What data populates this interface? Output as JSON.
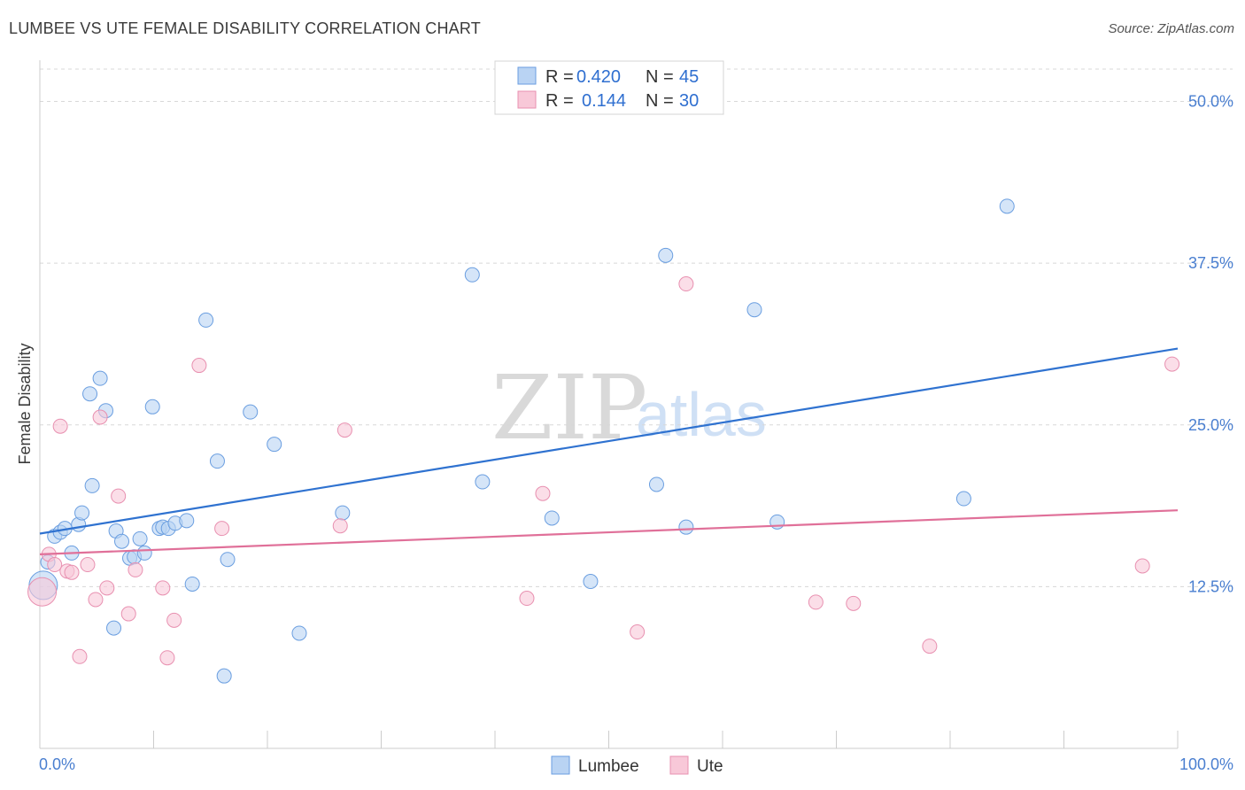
{
  "header": {
    "title": "LUMBEE VS UTE FEMALE DISABILITY CORRELATION CHART",
    "source": "Source: ZipAtlas.com"
  },
  "watermark": {
    "zip": "ZIP",
    "atlas": "atlas"
  },
  "colors": {
    "lumbee_fill": "#b9d3f3",
    "lumbee_stroke": "#6a9ee0",
    "lumbee_line": "#2f72d0",
    "ute_fill": "#f8c8d8",
    "ute_stroke": "#e890b0",
    "ute_line": "#e07099",
    "grid": "#d8d8d8",
    "tick_label": "#4a7fd0"
  },
  "stats": [
    {
      "r_label": "R = ",
      "r_value": "0.420",
      "n_label": "N = ",
      "n_value": "45"
    },
    {
      "r_label": "R = ",
      "r_value": "0.144",
      "n_label": "N = ",
      "n_value": "30"
    }
  ],
  "chart_data": {
    "type": "scatter",
    "title": "LUMBEE VS UTE FEMALE DISABILITY CORRELATION CHART",
    "xlabel": "",
    "ylabel": "Female Disability",
    "xlim": [
      0,
      100
    ],
    "ylim": [
      0,
      52.5
    ],
    "x_tick_labels": [
      "0.0%",
      "100.0%"
    ],
    "y_ticks": [
      12.5,
      25.0,
      37.5,
      50.0
    ],
    "y_tick_labels": [
      "12.5%",
      "25.0%",
      "37.5%",
      "50.0%"
    ],
    "grid": "horizontal dashed",
    "legend_position": "bottom-center",
    "series": [
      {
        "name": "Lumbee",
        "points": [
          [
            0.3,
            12.6
          ],
          [
            0.7,
            14.4
          ],
          [
            1.3,
            16.4
          ],
          [
            1.8,
            16.7
          ],
          [
            2.2,
            17.0
          ],
          [
            2.8,
            15.1
          ],
          [
            3.4,
            17.3
          ],
          [
            3.7,
            18.2
          ],
          [
            4.4,
            27.4
          ],
          [
            4.6,
            20.3
          ],
          [
            5.3,
            28.6
          ],
          [
            5.8,
            26.1
          ],
          [
            6.5,
            9.3
          ],
          [
            6.7,
            16.8
          ],
          [
            7.2,
            16.0
          ],
          [
            7.9,
            14.7
          ],
          [
            8.3,
            14.8
          ],
          [
            8.8,
            16.2
          ],
          [
            9.2,
            15.1
          ],
          [
            9.9,
            26.4
          ],
          [
            10.5,
            17.0
          ],
          [
            10.8,
            17.1
          ],
          [
            11.3,
            17.0
          ],
          [
            11.9,
            17.4
          ],
          [
            12.9,
            17.6
          ],
          [
            13.4,
            12.7
          ],
          [
            14.6,
            33.1
          ],
          [
            15.6,
            22.2
          ],
          [
            16.2,
            5.6
          ],
          [
            16.5,
            14.6
          ],
          [
            18.5,
            26.0
          ],
          [
            20.6,
            23.5
          ],
          [
            22.8,
            8.9
          ],
          [
            26.6,
            18.2
          ],
          [
            38.0,
            36.6
          ],
          [
            38.9,
            20.6
          ],
          [
            45.0,
            17.8
          ],
          [
            48.4,
            12.9
          ],
          [
            54.2,
            20.4
          ],
          [
            55.0,
            38.1
          ],
          [
            56.8,
            17.1
          ],
          [
            62.8,
            33.9
          ],
          [
            64.8,
            17.5
          ],
          [
            81.2,
            19.3
          ],
          [
            85.0,
            41.9
          ]
        ],
        "trend": {
          "x": [
            0,
            100
          ],
          "y": [
            16.6,
            30.9
          ]
        }
      },
      {
        "name": "Ute",
        "points": [
          [
            0.2,
            12.1
          ],
          [
            0.8,
            15.0
          ],
          [
            1.3,
            14.2
          ],
          [
            1.8,
            24.9
          ],
          [
            2.4,
            13.7
          ],
          [
            2.8,
            13.6
          ],
          [
            3.5,
            7.1
          ],
          [
            4.2,
            14.2
          ],
          [
            4.9,
            11.5
          ],
          [
            5.3,
            25.6
          ],
          [
            5.9,
            12.4
          ],
          [
            6.9,
            19.5
          ],
          [
            7.8,
            10.4
          ],
          [
            8.4,
            13.8
          ],
          [
            10.8,
            12.4
          ],
          [
            11.2,
            7.0
          ],
          [
            11.8,
            9.9
          ],
          [
            14.0,
            29.6
          ],
          [
            16.0,
            17.0
          ],
          [
            26.4,
            17.2
          ],
          [
            26.8,
            24.6
          ],
          [
            42.8,
            11.6
          ],
          [
            44.2,
            19.7
          ],
          [
            52.5,
            9.0
          ],
          [
            56.8,
            35.9
          ],
          [
            68.2,
            11.3
          ],
          [
            71.5,
            11.2
          ],
          [
            78.2,
            7.9
          ],
          [
            96.9,
            14.1
          ],
          [
            99.5,
            29.7
          ]
        ],
        "trend": {
          "x": [
            0,
            100
          ],
          "y": [
            15.0,
            18.4
          ]
        }
      }
    ]
  },
  "legend": {
    "items": [
      {
        "label": "Lumbee"
      },
      {
        "label": "Ute"
      }
    ]
  }
}
